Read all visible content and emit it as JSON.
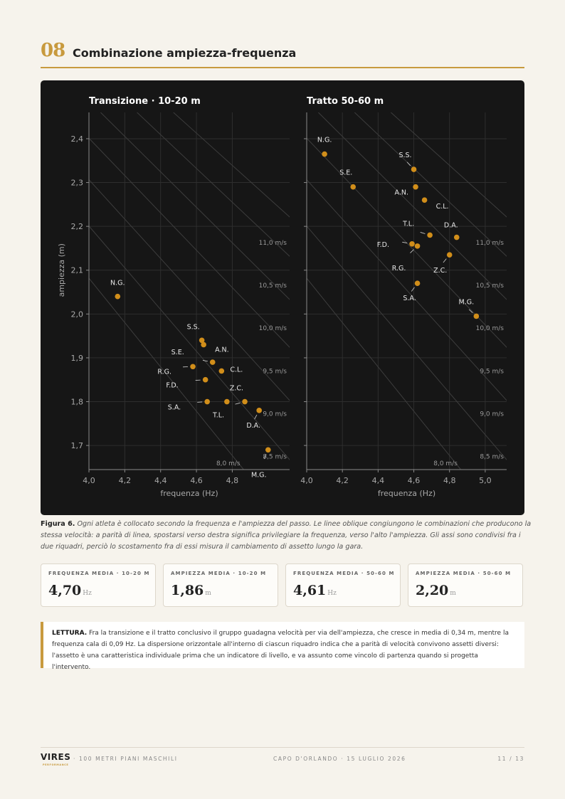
{
  "header": {
    "section_number": "08",
    "section_title": "Combinazione ampiezza-frequenza"
  },
  "colors": {
    "accent": "#c89a3e",
    "point": "#d18e1a",
    "panel_bg": "#161616"
  },
  "chart_data": [
    {
      "type": "scatter",
      "title": "Transizione · 10-20 m",
      "xlabel": "frequenza (Hz)",
      "ylabel": "ampiezza (m)",
      "xlim": [
        4.0,
        5.12
      ],
      "ylim": [
        1.645,
        2.46
      ],
      "xticks": [
        4.0,
        4.2,
        4.4,
        4.6,
        4.8
      ],
      "xtick_labels": [
        "4,0",
        "4,2",
        "4,4",
        "4,6",
        "4,8"
      ],
      "yticks": [
        1.7,
        1.8,
        1.9,
        2.0,
        2.1,
        2.2,
        2.3,
        2.4
      ],
      "ytick_labels": [
        "1,7",
        "1,8",
        "1,9",
        "2,0",
        "2,1",
        "2,2",
        "2,3",
        "2,4"
      ],
      "grid": true,
      "speed_lines": [
        {
          "v": 8.0,
          "label": "8,0 m/s"
        },
        {
          "v": 8.5,
          "label": "8,5 m/s"
        },
        {
          "v": 9.0,
          "label": "9,0 m/s"
        },
        {
          "v": 9.5,
          "label": "9,5 m/s"
        },
        {
          "v": 10.0,
          "label": "10,0 m/s"
        },
        {
          "v": 10.5,
          "label": "10,5 m/s"
        },
        {
          "v": 11.0,
          "label": "11,0 m/s"
        }
      ],
      "points": [
        {
          "name": "N.G.",
          "x": 4.16,
          "y": 2.04
        },
        {
          "name": "S.S.",
          "x": 4.63,
          "y": 1.94
        },
        {
          "name": "A.N.",
          "x": 4.64,
          "y": 1.93
        },
        {
          "name": "S.E.",
          "x": 4.69,
          "y": 1.89
        },
        {
          "name": "R.G.",
          "x": 4.58,
          "y": 1.88
        },
        {
          "name": "C.L.",
          "x": 4.74,
          "y": 1.87
        },
        {
          "name": "F.D.",
          "x": 4.65,
          "y": 1.85
        },
        {
          "name": "Z.C.",
          "x": 4.77,
          "y": 1.8
        },
        {
          "name": "S.A.",
          "x": 4.66,
          "y": 1.8
        },
        {
          "name": "T.L.",
          "x": 4.87,
          "y": 1.8
        },
        {
          "name": "D.A.",
          "x": 4.95,
          "y": 1.78
        },
        {
          "name": "M.G.",
          "x": 5.0,
          "y": 1.69
        }
      ]
    },
    {
      "type": "scatter",
      "title": "Tratto 50-60 m",
      "xlabel": "frequenza (Hz)",
      "ylabel": "",
      "xlim": [
        4.0,
        5.12
      ],
      "ylim": [
        1.645,
        2.46
      ],
      "xticks": [
        4.0,
        4.2,
        4.4,
        4.6,
        4.8,
        5.0
      ],
      "xtick_labels": [
        "4,0",
        "4,2",
        "4,4",
        "4,6",
        "4,8",
        "5,0"
      ],
      "grid": true,
      "speed_lines": [
        {
          "v": 8.0,
          "label": "8,0 m/s"
        },
        {
          "v": 8.5,
          "label": "8,5 m/s"
        },
        {
          "v": 9.0,
          "label": "9,0 m/s"
        },
        {
          "v": 9.5,
          "label": "9,5 m/s"
        },
        {
          "v": 10.0,
          "label": "10,0 m/s"
        },
        {
          "v": 10.5,
          "label": "10,5 m/s"
        },
        {
          "v": 11.0,
          "label": "11,0 m/s"
        }
      ],
      "points": [
        {
          "name": "N.G.",
          "x": 4.1,
          "y": 2.365
        },
        {
          "name": "S.S.",
          "x": 4.6,
          "y": 2.33
        },
        {
          "name": "S.E.",
          "x": 4.26,
          "y": 2.29
        },
        {
          "name": "A.N.",
          "x": 4.61,
          "y": 2.29
        },
        {
          "name": "C.L.",
          "x": 4.66,
          "y": 2.26
        },
        {
          "name": "T.L.",
          "x": 4.69,
          "y": 2.18
        },
        {
          "name": "D.A.",
          "x": 4.84,
          "y": 2.175
        },
        {
          "name": "F.D.",
          "x": 4.59,
          "y": 2.16
        },
        {
          "name": "R.G.",
          "x": 4.62,
          "y": 2.155
        },
        {
          "name": "Z.C.",
          "x": 4.8,
          "y": 2.135
        },
        {
          "name": "S.A.",
          "x": 4.62,
          "y": 2.07
        },
        {
          "name": "M.G.",
          "x": 4.95,
          "y": 1.995
        }
      ]
    }
  ],
  "caption": {
    "prefix": "Figura 6.",
    "text": "Ogni atleta è collocato secondo la frequenza e l'ampiezza del passo. Le linee oblique congiungono le combinazioni che producono la stessa velocità: a parità di linea, spostarsi verso destra significa privilegiare la frequenza, verso l'alto l'ampiezza. Gli assi sono condivisi fra i due riquadri, perciò lo scostamento fra di essi misura il cambiamento di assetto lungo la gara."
  },
  "stats": [
    {
      "label": "FREQUENZA MEDIA · 10-20 M",
      "value": "4,70",
      "unit": "Hz"
    },
    {
      "label": "AMPIEZZA MEDIA · 10-20 M",
      "value": "1,86",
      "unit": "m"
    },
    {
      "label": "FREQUENZA MEDIA · 50-60 M",
      "value": "4,61",
      "unit": "Hz"
    },
    {
      "label": "AMPIEZZA MEDIA · 50-60 M",
      "value": "2,20",
      "unit": "m"
    }
  ],
  "note": {
    "prefix": "LETTURA.",
    "text": "Fra la transizione e il tratto conclusivo il gruppo guadagna velocità per via dell'ampiezza, che cresce in media di 0,34 m, mentre la frequenza cala di 0,09 Hz. La dispersione orizzontale all'interno di ciascun riquadro indica che a parità di velocità convivono assetti diversi: l'assetto è una caratteristica individuale prima che un indicatore di livello, e va assunto come vincolo di partenza quando si progetta l'intervento."
  },
  "footer": {
    "logo_text": "VIRES",
    "logo_sub": "PERFORMANCE",
    "left": "· 100 METRI PIANI MASCHILI",
    "center": "CAPO D'ORLANDO · 15 LUGLIO 2026",
    "right": "11 / 13"
  }
}
